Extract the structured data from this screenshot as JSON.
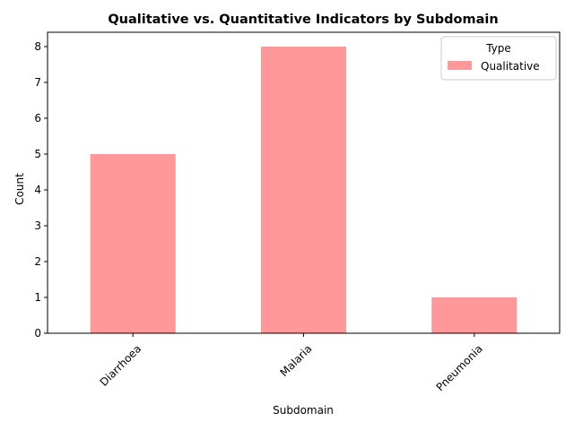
{
  "chart_data": {
    "type": "bar",
    "title": "Qualitative vs. Quantitative Indicators by Subdomain",
    "xlabel": "Subdomain",
    "ylabel": "Count",
    "categories": [
      "Diarrhoea",
      "Malaria",
      "Pneumonia"
    ],
    "series": [
      {
        "name": "Qualitative",
        "values": [
          5,
          8,
          1
        ],
        "color": "#ff9999"
      }
    ],
    "ylim": [
      0,
      8.4
    ],
    "yticks": [
      0,
      1,
      2,
      3,
      4,
      5,
      6,
      7,
      8
    ],
    "xtick_rotation": 45,
    "grid": false,
    "legend": {
      "title": "Type",
      "placement": "top-right"
    }
  }
}
